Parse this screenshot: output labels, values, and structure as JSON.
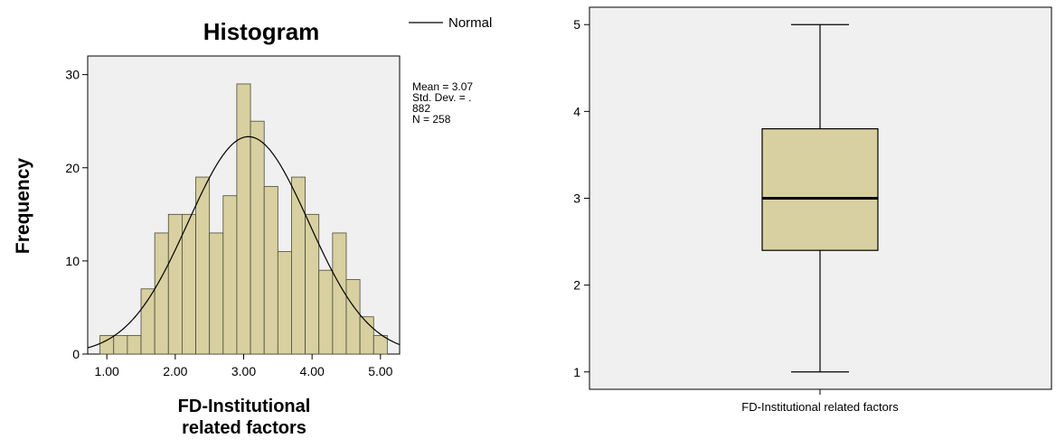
{
  "chart_data": [
    {
      "type": "bar",
      "title": "Histogram",
      "xlabel": "FD-Institutional related factors",
      "xlabel_lines": [
        "FD-Institutional",
        "related factors"
      ],
      "ylabel": "Frequency",
      "xlim": [
        0.72,
        5.28
      ],
      "ylim": [
        0,
        32
      ],
      "x_ticks": [
        1.0,
        2.0,
        3.0,
        4.0,
        5.0
      ],
      "x_tick_labels": [
        "1.00",
        "2.00",
        "3.00",
        "4.00",
        "5.00"
      ],
      "y_ticks": [
        0,
        10,
        20,
        30
      ],
      "y_tick_labels": [
        "0",
        "10",
        "20",
        "30"
      ],
      "bin_width": 0.2,
      "bin_centers": [
        1.0,
        1.2,
        1.4,
        1.6,
        1.8,
        2.0,
        2.2,
        2.4,
        2.6,
        2.8,
        3.0,
        3.2,
        3.4,
        3.6,
        3.8,
        4.0,
        4.2,
        4.4,
        4.6,
        4.8,
        5.0
      ],
      "values": [
        2,
        2,
        2,
        7,
        13,
        15,
        15,
        19,
        13,
        17,
        29,
        25,
        18,
        11,
        19,
        15,
        9,
        13,
        8,
        4,
        2
      ],
      "normal_curve": {
        "legend": "Normal",
        "mean": 3.07,
        "sd": 0.882,
        "n": 258
      },
      "stats_lines": [
        "Mean = 3.07",
        "Std. Dev. = .",
        "882",
        "N = 258"
      ],
      "colors": {
        "bar_fill": "#d8d0a0",
        "bar_stroke": "#4a4a3a",
        "plot_bg": "#f0f0f0",
        "curve": "#000000"
      },
      "grid": false
    },
    {
      "type": "boxplot",
      "category": "FD-Institutional  related factors",
      "min": 1.0,
      "q1": 2.4,
      "median": 3.0,
      "q3": 3.8,
      "max": 5.0,
      "ylim": [
        0.8,
        5.2
      ],
      "y_ticks": [
        1,
        2,
        3,
        4,
        5
      ],
      "y_tick_labels": [
        "1",
        "2",
        "3",
        "4",
        "5"
      ],
      "colors": {
        "box_fill": "#d8d0a0",
        "box_stroke": "#000000",
        "plot_bg": "#f0f0f0"
      },
      "grid": false
    }
  ]
}
